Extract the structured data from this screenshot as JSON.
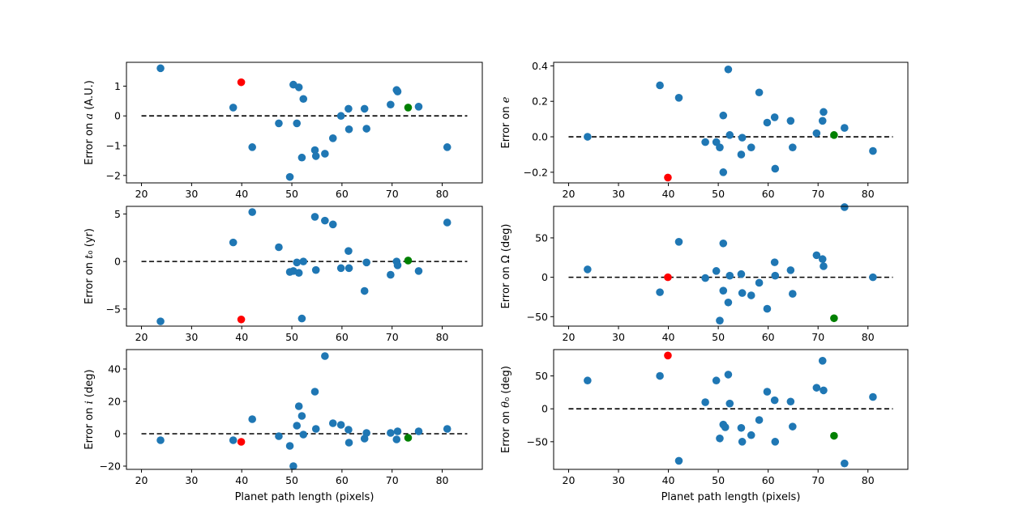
{
  "figure": {
    "width": 1246,
    "height": 650,
    "colors": {
      "points": "#1f77b4",
      "highlight_red": "#ff0000",
      "highlight_green": "#008000",
      "reference_line": "#000000"
    }
  },
  "chart_data": [
    {
      "id": "a",
      "type": "scatter",
      "ylabel_parts": [
        "Error on ",
        "a",
        " (A.U.)"
      ],
      "xlabel": "",
      "xlim": [
        17,
        88
      ],
      "ylim": [
        -2.25,
        1.8
      ],
      "xticks": [
        20,
        30,
        40,
        50,
        60,
        70,
        80
      ],
      "yticks": [
        -2,
        -1,
        0,
        1
      ],
      "ref_line": {
        "x": [
          20,
          85
        ],
        "y": 0
      },
      "points": [
        [
          23.8,
          1.6
        ],
        [
          38.3,
          0.28
        ],
        [
          42.1,
          -1.05
        ],
        [
          47.4,
          -0.25
        ],
        [
          49.6,
          -2.05
        ],
        [
          50.3,
          1.05
        ],
        [
          51.0,
          -0.25
        ],
        [
          51.4,
          0.96
        ],
        [
          52.0,
          -1.4
        ],
        [
          52.3,
          0.57
        ],
        [
          54.6,
          -1.15
        ],
        [
          54.8,
          -1.35
        ],
        [
          56.6,
          -1.27
        ],
        [
          58.2,
          -0.75
        ],
        [
          59.8,
          0.0
        ],
        [
          61.3,
          0.24
        ],
        [
          61.4,
          -0.45
        ],
        [
          64.5,
          0.24
        ],
        [
          64.9,
          -0.43
        ],
        [
          69.7,
          0.38
        ],
        [
          70.9,
          0.87
        ],
        [
          71.1,
          0.82
        ],
        [
          75.3,
          0.31
        ],
        [
          81.0,
          -1.05
        ]
      ],
      "highlight_red": [
        [
          39.9,
          1.13
        ]
      ],
      "highlight_green": [
        [
          73.2,
          0.28
        ]
      ]
    },
    {
      "id": "e",
      "type": "scatter",
      "ylabel_parts": [
        "Error on ",
        "e",
        ""
      ],
      "xlabel": "",
      "xlim": [
        17,
        88
      ],
      "ylim": [
        -0.26,
        0.42
      ],
      "xticks": [
        20,
        30,
        40,
        50,
        60,
        70,
        80
      ],
      "yticks": [
        -0.2,
        0.0,
        0.2,
        0.4
      ],
      "ytick_labels": [
        "−0.2",
        "0.0",
        "0.2",
        "0.4"
      ],
      "ref_line": {
        "x": [
          20,
          85
        ],
        "y": 0
      },
      "points": [
        [
          23.8,
          0.0
        ],
        [
          38.3,
          0.29
        ],
        [
          42.1,
          0.22
        ],
        [
          47.4,
          -0.03
        ],
        [
          49.6,
          -0.03
        ],
        [
          50.3,
          -0.06
        ],
        [
          51.0,
          0.12
        ],
        [
          51.0,
          -0.2
        ],
        [
          52.0,
          0.38
        ],
        [
          52.3,
          0.01
        ],
        [
          54.6,
          -0.1
        ],
        [
          54.8,
          -0.005
        ],
        [
          56.6,
          -0.06
        ],
        [
          58.2,
          0.25
        ],
        [
          59.8,
          0.08
        ],
        [
          61.3,
          0.11
        ],
        [
          61.4,
          -0.18
        ],
        [
          64.5,
          0.09
        ],
        [
          64.9,
          -0.06
        ],
        [
          69.7,
          0.02
        ],
        [
          70.9,
          0.09
        ],
        [
          71.1,
          0.14
        ],
        [
          75.3,
          0.05
        ],
        [
          81.0,
          -0.08
        ]
      ],
      "highlight_red": [
        [
          39.9,
          -0.23
        ]
      ],
      "highlight_green": [
        [
          73.2,
          0.01
        ]
      ]
    },
    {
      "id": "t0",
      "type": "scatter",
      "ylabel_parts": [
        "Error on ",
        "t",
        "₀",
        " (yr)"
      ],
      "xlabel": "",
      "xlim": [
        17,
        88
      ],
      "ylim": [
        -6.8,
        5.8
      ],
      "xticks": [
        20,
        30,
        40,
        50,
        60,
        70,
        80
      ],
      "yticks": [
        -5,
        0,
        5
      ],
      "ref_line": {
        "x": [
          20,
          85
        ],
        "y": 0
      },
      "points": [
        [
          23.8,
          -6.3
        ],
        [
          38.3,
          2.0
        ],
        [
          42.1,
          5.2
        ],
        [
          47.4,
          1.5
        ],
        [
          49.6,
          -1.1
        ],
        [
          50.3,
          -1.0
        ],
        [
          51.0,
          -0.1
        ],
        [
          51.4,
          -1.2
        ],
        [
          52.0,
          -6.0
        ],
        [
          52.3,
          0.0
        ],
        [
          54.6,
          4.7
        ],
        [
          54.8,
          -0.9
        ],
        [
          56.6,
          4.3
        ],
        [
          58.2,
          3.9
        ],
        [
          59.8,
          -0.7
        ],
        [
          61.3,
          1.1
        ],
        [
          61.4,
          -0.7
        ],
        [
          64.5,
          -3.1
        ],
        [
          64.9,
          -0.1
        ],
        [
          69.7,
          -1.4
        ],
        [
          70.9,
          0.0
        ],
        [
          71.1,
          -0.4
        ],
        [
          75.3,
          -1.0
        ],
        [
          81.0,
          4.1
        ]
      ],
      "highlight_red": [
        [
          39.9,
          -6.1
        ]
      ],
      "highlight_green": [
        [
          73.2,
          0.1
        ]
      ]
    },
    {
      "id": "omega",
      "type": "scatter",
      "ylabel_parts": [
        "Error on Ω (deg)"
      ],
      "xlabel": "",
      "xlim": [
        17,
        88
      ],
      "ylim": [
        -62,
        90
      ],
      "xticks": [
        20,
        30,
        40,
        50,
        60,
        70,
        80
      ],
      "yticks": [
        -50,
        0,
        50
      ],
      "ref_line": {
        "x": [
          20,
          85
        ],
        "y": 0
      },
      "points": [
        [
          23.8,
          10
        ],
        [
          38.3,
          -19
        ],
        [
          42.1,
          45
        ],
        [
          47.4,
          -1
        ],
        [
          49.6,
          8
        ],
        [
          50.3,
          -55
        ],
        [
          51.0,
          43
        ],
        [
          51.0,
          -17
        ],
        [
          52.0,
          -32
        ],
        [
          52.3,
          2
        ],
        [
          54.6,
          4
        ],
        [
          54.8,
          -20
        ],
        [
          56.6,
          -23
        ],
        [
          58.2,
          -7
        ],
        [
          59.8,
          -40
        ],
        [
          61.3,
          19
        ],
        [
          61.4,
          2
        ],
        [
          64.5,
          9
        ],
        [
          64.9,
          -21
        ],
        [
          69.7,
          28
        ],
        [
          70.9,
          23
        ],
        [
          71.1,
          14
        ],
        [
          75.3,
          89
        ],
        [
          81.0,
          0
        ]
      ],
      "highlight_red": [
        [
          39.9,
          0
        ]
      ],
      "highlight_green": [
        [
          73.2,
          -52
        ]
      ]
    },
    {
      "id": "i",
      "type": "scatter",
      "ylabel_parts": [
        "Error on ",
        "i",
        " (deg)"
      ],
      "xlabel": "Planet path length (pixels)",
      "xlim": [
        17,
        88
      ],
      "ylim": [
        -22,
        52
      ],
      "xticks": [
        20,
        30,
        40,
        50,
        60,
        70,
        80
      ],
      "yticks": [
        -20,
        0,
        20,
        40
      ],
      "ref_line": {
        "x": [
          20,
          85
        ],
        "y": 0
      },
      "points": [
        [
          23.8,
          -4
        ],
        [
          38.3,
          -4
        ],
        [
          42.1,
          9
        ],
        [
          47.4,
          -1.5
        ],
        [
          49.6,
          -7.5
        ],
        [
          50.3,
          -20
        ],
        [
          51.0,
          5
        ],
        [
          51.4,
          17
        ],
        [
          52.0,
          11
        ],
        [
          52.3,
          -0.5
        ],
        [
          54.6,
          26
        ],
        [
          54.8,
          3
        ],
        [
          56.6,
          48
        ],
        [
          58.2,
          6.5
        ],
        [
          59.8,
          5.5
        ],
        [
          61.3,
          2.5
        ],
        [
          61.4,
          -5.5
        ],
        [
          64.5,
          -3
        ],
        [
          64.9,
          0.5
        ],
        [
          69.7,
          0.5
        ],
        [
          70.9,
          -3.5
        ],
        [
          71.1,
          1.5
        ],
        [
          75.3,
          1.5
        ],
        [
          81.0,
          3
        ]
      ],
      "highlight_red": [
        [
          39.9,
          -5
        ]
      ],
      "highlight_green": [
        [
          73.2,
          -2.5
        ]
      ]
    },
    {
      "id": "theta0",
      "type": "scatter",
      "ylabel_parts": [
        "Error on ",
        "θ",
        "₀",
        " (deg)"
      ],
      "xlabel": "Planet path length (pixels)",
      "xlim": [
        17,
        88
      ],
      "ylim": [
        -92,
        90
      ],
      "xticks": [
        20,
        30,
        40,
        50,
        60,
        70,
        80
      ],
      "yticks": [
        -50,
        0,
        50
      ],
      "ref_line": {
        "x": [
          20,
          85
        ],
        "y": 0
      },
      "points": [
        [
          23.8,
          43
        ],
        [
          38.3,
          50
        ],
        [
          42.1,
          -79
        ],
        [
          47.4,
          10
        ],
        [
          49.6,
          43
        ],
        [
          50.3,
          -45
        ],
        [
          51.0,
          -24
        ],
        [
          51.4,
          -28
        ],
        [
          52.0,
          52
        ],
        [
          52.3,
          8
        ],
        [
          54.6,
          -29
        ],
        [
          54.8,
          -50
        ],
        [
          56.6,
          -40
        ],
        [
          58.2,
          -17
        ],
        [
          59.8,
          26
        ],
        [
          61.3,
          13
        ],
        [
          61.4,
          -50
        ],
        [
          64.5,
          11
        ],
        [
          64.9,
          -27
        ],
        [
          69.7,
          32
        ],
        [
          70.9,
          73
        ],
        [
          71.1,
          28
        ],
        [
          75.3,
          -83
        ],
        [
          81.0,
          18
        ]
      ],
      "highlight_red": [
        [
          39.9,
          81
        ]
      ],
      "highlight_green": [
        [
          73.2,
          -41
        ]
      ]
    }
  ]
}
